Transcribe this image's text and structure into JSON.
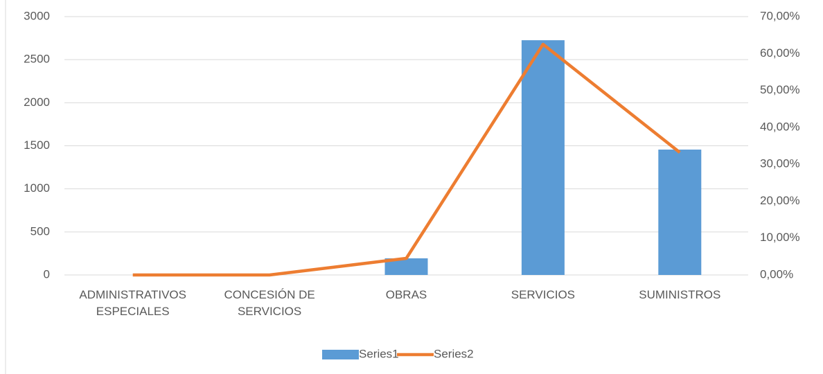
{
  "chart_data": {
    "type": "bar",
    "categories": [
      "ADMINISTRATIVOS ESPECIALES",
      "CONCESIÓN DE SERVICIOS",
      "OBRAS",
      "SERVICIOS",
      "SUMINISTROS"
    ],
    "series": [
      {
        "name": "Series1",
        "type": "bar",
        "color": "#5b9bd5",
        "values": [
          0,
          0,
          193,
          2726,
          1456
        ]
      },
      {
        "name": "Series2",
        "type": "line",
        "axis": "y2",
        "color": "#ed7d31",
        "values": [
          0,
          0,
          4.5,
          62.5,
          33.2
        ]
      }
    ],
    "ylim": [
      0,
      3000
    ],
    "yticks": [
      0,
      500,
      1000,
      1500,
      2000,
      2500,
      3000
    ],
    "y2lim": [
      0,
      70
    ],
    "y2ticks": [
      {
        "value": 0,
        "label": "0,00%"
      },
      {
        "value": 10,
        "label": "10,00%"
      },
      {
        "value": 20,
        "label": "20,00%"
      },
      {
        "value": 30,
        "label": "30,00%"
      },
      {
        "value": 40,
        "label": "40,00%"
      },
      {
        "value": 50,
        "label": "50,00%"
      },
      {
        "value": 60,
        "label": "60,00%"
      },
      {
        "value": 70,
        "label": "70,00%"
      }
    ],
    "grid": true,
    "legend": "bottom"
  }
}
